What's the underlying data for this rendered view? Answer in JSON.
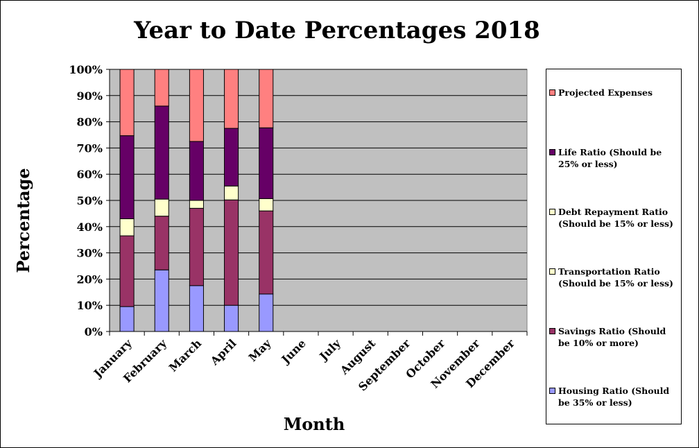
{
  "chart_data": {
    "type": "bar",
    "stacked": true,
    "percent_stacked": true,
    "title": "Year to Date Percentages 2018",
    "xlabel": "Month",
    "ylabel": "Percentage",
    "ylim": [
      0,
      100
    ],
    "yticks": [
      "0%",
      "10%",
      "20%",
      "30%",
      "40%",
      "50%",
      "60%",
      "70%",
      "80%",
      "90%",
      "100%"
    ],
    "grid": true,
    "legend_position": "right",
    "categories": [
      "January",
      "February",
      "March",
      "April",
      "May",
      "June",
      "July",
      "August",
      "September",
      "October",
      "November",
      "December"
    ],
    "series": [
      {
        "name": "Housing Ratio (Should be 35% or less)",
        "color": "#9999ff",
        "values": [
          9.5,
          23.5,
          17.5,
          10,
          14.3,
          0,
          0,
          0,
          0,
          0,
          0,
          0
        ]
      },
      {
        "name": "Savings Ratio (Should be 10% or more)",
        "color": "#993366",
        "values": [
          27,
          20.5,
          29.5,
          40.2,
          31.7,
          0,
          0,
          0,
          0,
          0,
          0,
          0
        ]
      },
      {
        "name": "Transportation Ratio (Should be 15% or less)",
        "color": "#ffffcc",
        "values": [
          6.5,
          6.5,
          3,
          5.3,
          4.7,
          0,
          0,
          0,
          0,
          0,
          0,
          0
        ]
      },
      {
        "name": "Debt Repayment Ratio (Should be 15% or less)",
        "color": "#ffffcc",
        "values": [
          0,
          0,
          0,
          0,
          0,
          0,
          0,
          0,
          0,
          0,
          0,
          0
        ]
      },
      {
        "name": "Life Ratio (Should be 25% or less)",
        "color": "#660066",
        "values": [
          31.7,
          35.5,
          22.5,
          22,
          27,
          0,
          0,
          0,
          0,
          0,
          0,
          0
        ]
      },
      {
        "name": "Projected Expenses",
        "color": "#ff8080",
        "values": [
          25.3,
          14,
          27.5,
          22.5,
          22.3,
          0,
          0,
          0,
          0,
          0,
          0,
          0
        ]
      }
    ],
    "legend_order": [
      "Projected Expenses",
      "Life Ratio (Should be 25% or less)",
      "Debt Repayment Ratio (Should be 15% or less)",
      "Transportation Ratio (Should be 15% or less)",
      "Savings Ratio (Should be 10% or more)",
      "Housing Ratio (Should be 35% or less)"
    ],
    "plot_background": "#c0c0c0"
  }
}
